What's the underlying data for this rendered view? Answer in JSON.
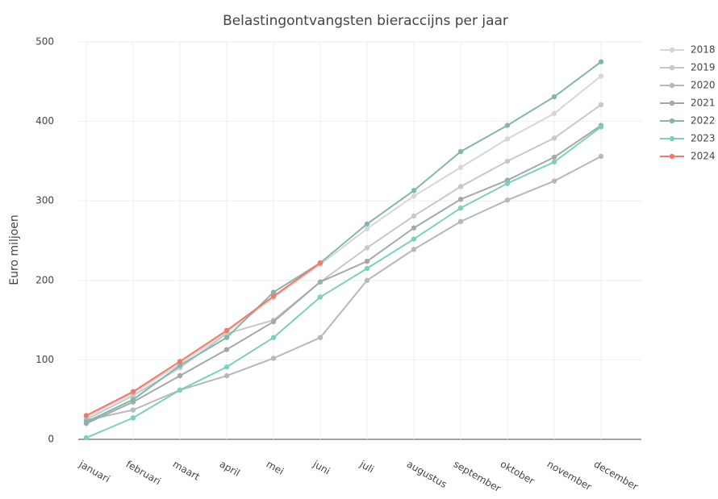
{
  "chart_data": {
    "type": "line",
    "title": "Belastingontvangsten bieraccijns per jaar",
    "y_label": "Euro miljoen",
    "categories": [
      "januari",
      "februari",
      "maart",
      "april",
      "mei",
      "juni",
      "juli",
      "augustus",
      "september",
      "oktober",
      "november",
      "december"
    ],
    "ylim": [
      0,
      500
    ],
    "yticks": [
      0,
      100,
      200,
      300,
      400,
      500
    ],
    "grid": true,
    "legend": "top-right",
    "series": [
      {
        "name": "2018",
        "color": "#d6d6d6",
        "values": [
          28,
          58,
          95,
          135,
          178,
          220,
          265,
          306,
          342,
          378,
          410,
          457
        ]
      },
      {
        "name": "2019",
        "color": "#c5c9c7",
        "values": [
          25,
          55,
          90,
          133,
          150,
          198,
          241,
          281,
          318,
          350,
          379,
          421
        ]
      },
      {
        "name": "2020",
        "color": "#b5bab8",
        "values": [
          24,
          37,
          62,
          80,
          102,
          128,
          200,
          239,
          274,
          301,
          325,
          356
        ]
      },
      {
        "name": "2021",
        "color": "#a2aaa7",
        "values": [
          20,
          47,
          80,
          113,
          148,
          198,
          224,
          266,
          302,
          326,
          355,
          395
        ]
      },
      {
        "name": "2022",
        "color": "#86b4ae",
        "values": [
          22,
          50,
          93,
          128,
          185,
          222,
          271,
          313,
          362,
          395,
          431,
          475
        ]
      },
      {
        "name": "2023",
        "color": "#7dd0b9",
        "values": [
          2,
          27,
          62,
          91,
          128,
          179,
          215,
          252,
          291,
          322,
          349,
          393
        ]
      },
      {
        "name": "2024",
        "color": "#ef7b6d",
        "values": [
          30,
          60,
          98,
          137,
          180,
          222,
          null,
          null,
          null,
          null,
          null,
          null
        ]
      }
    ]
  }
}
